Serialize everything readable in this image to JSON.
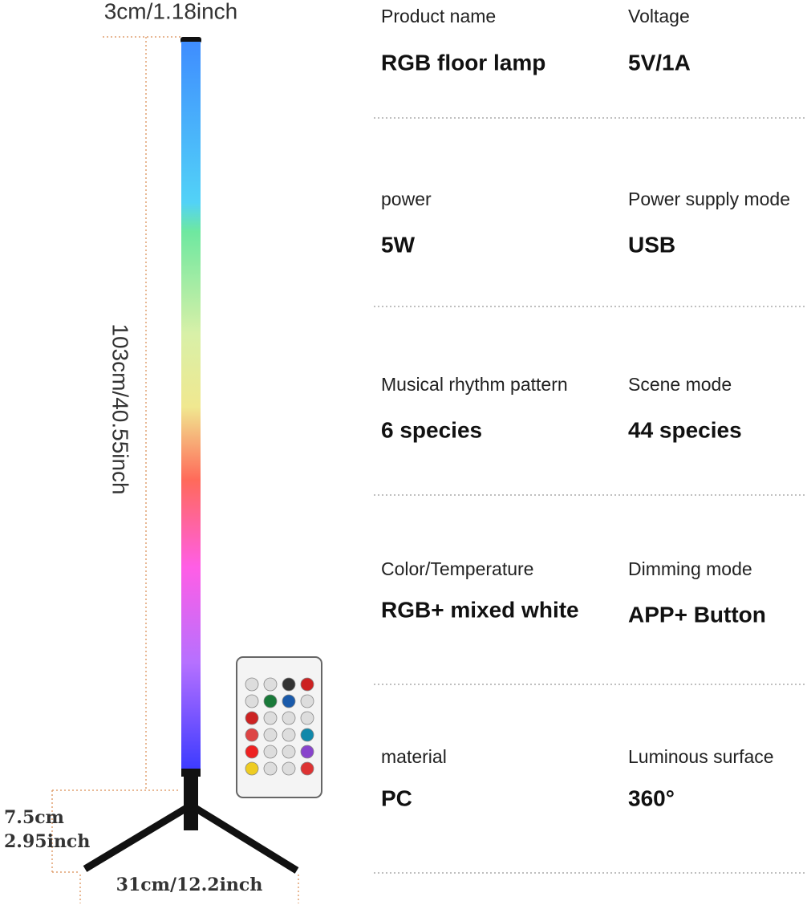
{
  "dimensions": {
    "diameter": "3cm/1.18inch",
    "height": "103cm/40.55inch",
    "base_height": [
      "7.5cm",
      "2.95inch"
    ],
    "base_width": "31cm/12.2inch"
  },
  "specs": [
    {
      "label": "Product name",
      "value": "RGB floor lamp"
    },
    {
      "label": "Voltage",
      "value": "5V/1A"
    },
    {
      "label": "power",
      "value": "5W"
    },
    {
      "label": "Power supply mode",
      "value": "USB"
    },
    {
      "label": "Musical rhythm pattern",
      "value": "6 species"
    },
    {
      "label": "Scene mode",
      "value": "44 species"
    },
    {
      "label": "Color/Temperature",
      "value": "RGB+ mixed white"
    },
    {
      "label": "Dimming mode",
      "value": "APP+ Button"
    },
    {
      "label": "material",
      "value": "PC"
    },
    {
      "label": "Luminous surface",
      "value": "360°"
    }
  ]
}
